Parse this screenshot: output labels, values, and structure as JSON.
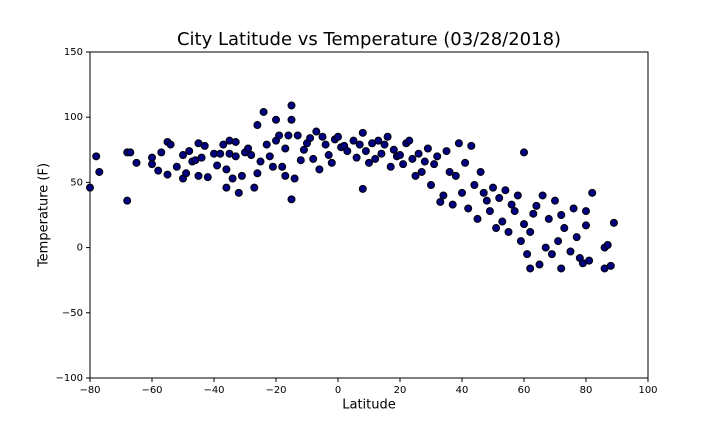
{
  "chart_data": {
    "type": "scatter",
    "title": "City Latitude vs Temperature (03/28/2018)",
    "x_label": "Latitude",
    "y_label": "Temperature (F)",
    "color": "#000080",
    "edgecolor": "#000000",
    "xlim": [
      -80,
      100
    ],
    "ylim": [
      -100,
      150
    ],
    "xticks": [
      {
        "value": -80,
        "label": "−80"
      },
      {
        "value": -60,
        "label": "−60"
      },
      {
        "value": -40,
        "label": "−40"
      },
      {
        "value": -20,
        "label": "−20"
      },
      0,
      20,
      40,
      60,
      80,
      100
    ],
    "yticks": [
      {
        "value": -100,
        "label": "−100"
      },
      {
        "value": -50,
        "label": "−50"
      },
      0,
      50,
      100,
      150
    ],
    "x": [
      -80,
      -78,
      -77,
      -68,
      -68,
      -67,
      -65,
      -60,
      -60,
      -58,
      -57,
      -55,
      -54,
      -55,
      -52,
      -50,
      -50,
      -49,
      -48,
      -47,
      -46,
      -45,
      -45,
      -44,
      -43,
      -42,
      -40,
      -39,
      -38,
      -37,
      -36,
      -36,
      -35,
      -35,
      -34,
      -33,
      -33,
      -32,
      -31,
      -30,
      -29,
      -28,
      -27,
      -26,
      -26,
      -25,
      -24,
      -23,
      -22,
      -21,
      -20,
      -20,
      -19,
      -18,
      -17,
      -17,
      -16,
      -15,
      -15,
      -15,
      -14,
      -13,
      -12,
      -11,
      -10,
      -9,
      -8,
      -7,
      -6,
      -5,
      -4,
      -3,
      -2,
      -1,
      0,
      1,
      2,
      3,
      5,
      6,
      7,
      8,
      8,
      9,
      10,
      11,
      12,
      13,
      14,
      15,
      16,
      17,
      18,
      19,
      20,
      21,
      22,
      23,
      24,
      25,
      26,
      27,
      28,
      29,
      30,
      31,
      32,
      33,
      34,
      35,
      36,
      37,
      38,
      39,
      40,
      41,
      42,
      43,
      44,
      45,
      46,
      47,
      48,
      49,
      50,
      51,
      52,
      53,
      54,
      55,
      56,
      57,
      58,
      59,
      60,
      60,
      61,
      62,
      62,
      63,
      64,
      65,
      66,
      67,
      68,
      69,
      70,
      71,
      72,
      72,
      73,
      75,
      76,
      77,
      78,
      79,
      80,
      80,
      81,
      82,
      86,
      86,
      87,
      88,
      89
    ],
    "y": [
      46,
      70,
      58,
      73,
      36,
      73,
      65,
      69,
      64,
      59,
      73,
      81,
      79,
      56,
      62,
      71,
      53,
      57,
      74,
      66,
      67,
      80,
      55,
      69,
      78,
      54,
      72,
      63,
      72,
      79,
      60,
      46,
      72,
      82,
      53,
      70,
      81,
      42,
      55,
      73,
      76,
      71,
      46,
      94,
      57,
      66,
      104,
      79,
      70,
      62,
      98,
      82,
      86,
      62,
      76,
      55,
      86,
      109,
      98,
      37,
      53,
      86,
      67,
      75,
      80,
      84,
      68,
      89,
      60,
      85,
      79,
      71,
      65,
      83,
      85,
      77,
      78,
      74,
      82,
      69,
      79,
      88,
      45,
      74,
      65,
      80,
      68,
      82,
      72,
      79,
      85,
      62,
      75,
      70,
      71,
      64,
      80,
      82,
      68,
      55,
      72,
      58,
      66,
      76,
      48,
      64,
      70,
      35,
      40,
      74,
      58,
      33,
      55,
      80,
      42,
      65,
      30,
      78,
      48,
      22,
      58,
      42,
      36,
      28,
      46,
      15,
      38,
      20,
      44,
      12,
      33,
      28,
      40,
      5,
      73,
      18,
      -5,
      12,
      -16,
      26,
      32,
      -13,
      40,
      0,
      22,
      -5,
      36,
      5,
      -16,
      25,
      15,
      -3,
      30,
      8,
      -8,
      -12,
      28,
      17,
      -10,
      42,
      0,
      -16,
      2,
      -14,
      19
    ]
  }
}
